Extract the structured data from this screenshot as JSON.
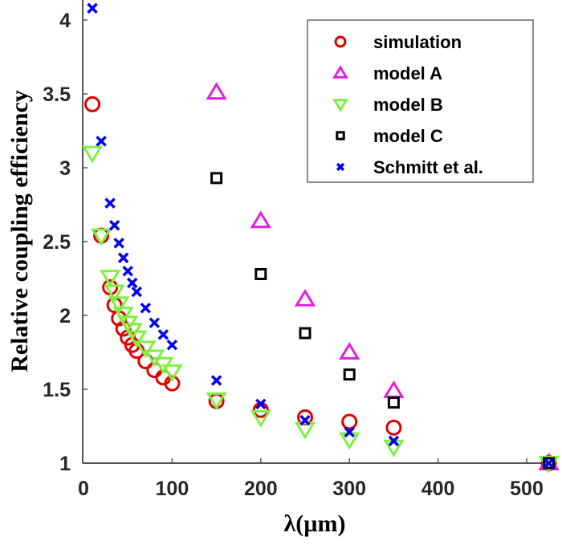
{
  "chart_data": {
    "type": "scatter",
    "title": "",
    "xlabel": "λ(µm)",
    "ylabel": "Relative coupling efficiency",
    "xlim": [
      0,
      525
    ],
    "ylim": [
      1,
      4.13
    ],
    "xticks": [
      0,
      100,
      200,
      300,
      400,
      500
    ],
    "yticks": [
      1,
      1.5,
      2,
      2.5,
      3,
      3.5,
      4
    ],
    "xtick_labels": [
      "0",
      "100",
      "200",
      "300",
      "400",
      "500"
    ],
    "ytick_labels": [
      "1",
      "1.5",
      "2",
      "2.5",
      "3",
      "3.5",
      "4"
    ],
    "grid": false,
    "legend_position": "top-right",
    "series": [
      {
        "name": "simulation",
        "marker": "circle",
        "color": "#e00000",
        "x": [
          10,
          20,
          30,
          35,
          40,
          45,
          50,
          55,
          60,
          70,
          80,
          90,
          100,
          150,
          200,
          250,
          300,
          350,
          525
        ],
        "y": [
          3.43,
          2.54,
          2.19,
          2.07,
          1.98,
          1.91,
          1.85,
          1.8,
          1.76,
          1.69,
          1.63,
          1.58,
          1.54,
          1.42,
          1.36,
          1.31,
          1.28,
          1.24,
          1.0
        ]
      },
      {
        "name": "model A",
        "marker": "triangle-up",
        "color": "#e020e0",
        "x": [
          150,
          200,
          250,
          300,
          350,
          525
        ],
        "y": [
          3.51,
          2.64,
          2.11,
          1.75,
          1.49,
          1.0
        ]
      },
      {
        "name": "model B",
        "marker": "triangle-down",
        "color": "#80f040",
        "x": [
          10,
          20,
          30,
          35,
          40,
          45,
          50,
          55,
          60,
          70,
          80,
          90,
          100,
          150,
          200,
          250,
          300,
          350,
          525
        ],
        "y": [
          3.1,
          2.54,
          2.26,
          2.16,
          2.08,
          2.01,
          1.95,
          1.9,
          1.85,
          1.78,
          1.72,
          1.67,
          1.62,
          1.43,
          1.31,
          1.23,
          1.16,
          1.11,
          1.0
        ]
      },
      {
        "name": "model C",
        "marker": "square",
        "color": "#000000",
        "x": [
          150,
          200,
          250,
          300,
          350,
          525
        ],
        "y": [
          2.93,
          2.28,
          1.88,
          1.6,
          1.41,
          1.0
        ]
      },
      {
        "name": "Schmitt et al.",
        "marker": "x",
        "color": "#0000ee",
        "x": [
          10,
          20,
          30,
          35,
          40,
          45,
          50,
          55,
          60,
          70,
          80,
          90,
          100,
          150,
          200,
          250,
          300,
          350,
          525
        ],
        "y": [
          4.08,
          3.18,
          2.76,
          2.61,
          2.49,
          2.39,
          2.3,
          2.22,
          2.16,
          2.05,
          1.95,
          1.87,
          1.8,
          1.56,
          1.4,
          1.29,
          1.21,
          1.15,
          1.0
        ]
      }
    ]
  }
}
